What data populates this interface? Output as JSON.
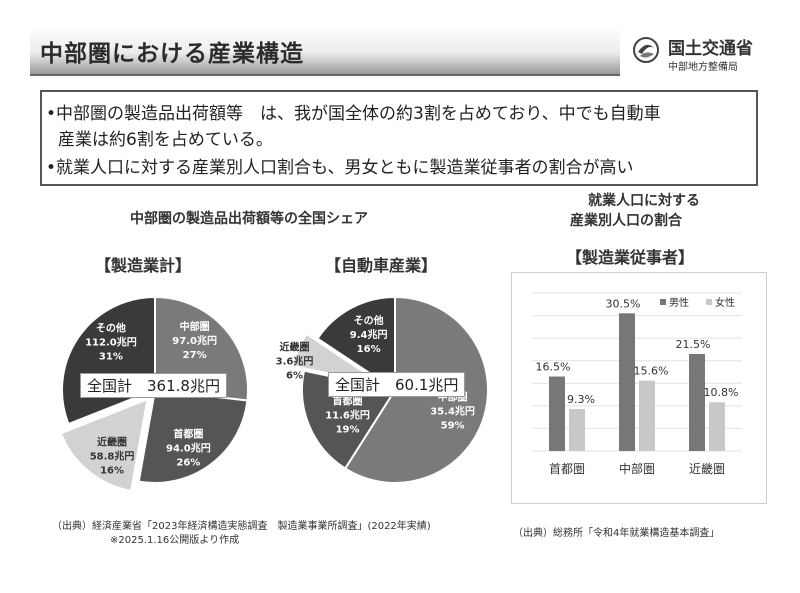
{
  "header": {
    "title": "中部圏における産業構造",
    "org_name": "国土交通省",
    "org_sub": "中部地方整備局"
  },
  "summary": {
    "line1": "•中部圏の製造品出荷額等　は、我が国全体の約3割を占めており、中でも自動車",
    "line2": "産業は約6割を占めている。",
    "line3": "•就業人口に対する産業別人口割合も、男女ともに製造業従事者の割合が高い"
  },
  "left_section": {
    "subtitle": "中部圏の製造品出荷額等の全国シェア",
    "source1": "（出典）経済産業省「2023年経済構造実態調査　製造業事業所調査」(2022年実績)",
    "source2": "※2025.1.16公開版より作成"
  },
  "right_section": {
    "title1": "就業人口に対する",
    "title2": "産業別人口の割合",
    "label": "【製造業従事者】",
    "source": "（出典）総務所「令和4年就業構造基本調査」"
  },
  "colors": {
    "chubu": "#7a7a7a",
    "shutoken": "#555555",
    "kinki": "#d2d2d2",
    "other": "#3a3a3a",
    "male": "#777777",
    "female": "#c8c8c8"
  },
  "chart_data": [
    {
      "type": "pie",
      "title": "【製造業計】",
      "total_label": "全国計　361.8兆円",
      "slices": [
        {
          "name": "中部圏",
          "value": 97.0,
          "value_label": "97.0兆円",
          "pct_label": "27%"
        },
        {
          "name": "首都圏",
          "value": 94.0,
          "value_label": "94.0兆円",
          "pct_label": "26%"
        },
        {
          "name": "近畿圏",
          "value": 58.8,
          "value_label": "58.8兆円",
          "pct_label": "16%"
        },
        {
          "name": "その他",
          "value": 112.0,
          "value_label": "112.0兆円",
          "pct_label": "31%"
        }
      ]
    },
    {
      "type": "pie",
      "title": "【自動車産業】",
      "total_label": "全国計　60.1兆円",
      "slices": [
        {
          "name": "中部圏",
          "value": 35.4,
          "value_label": "35.4兆円",
          "pct_label": "59%"
        },
        {
          "name": "首都圏",
          "value": 11.6,
          "value_label": "11.6兆円",
          "pct_label": "19%"
        },
        {
          "name": "近畿圏",
          "value": 3.6,
          "value_label": "3.6兆円",
          "pct_label": "6%"
        },
        {
          "name": "その他",
          "value": 9.4,
          "value_label": "9.4兆円",
          "pct_label": "16%"
        }
      ]
    },
    {
      "type": "bar",
      "title": "【製造業従事者】",
      "categories": [
        "首都圏",
        "中部圏",
        "近畿圏"
      ],
      "series": [
        {
          "name": "男性",
          "values": [
            16.5,
            30.5,
            21.5
          ],
          "labels": [
            "16.5%",
            "30.5%",
            "21.5%"
          ]
        },
        {
          "name": "女性",
          "values": [
            9.3,
            15.6,
            10.8
          ],
          "labels": [
            "9.3%",
            "15.6%",
            "10.8%"
          ]
        }
      ],
      "ylim": [
        0,
        35
      ],
      "grid": true,
      "legend": "top-right"
    }
  ]
}
